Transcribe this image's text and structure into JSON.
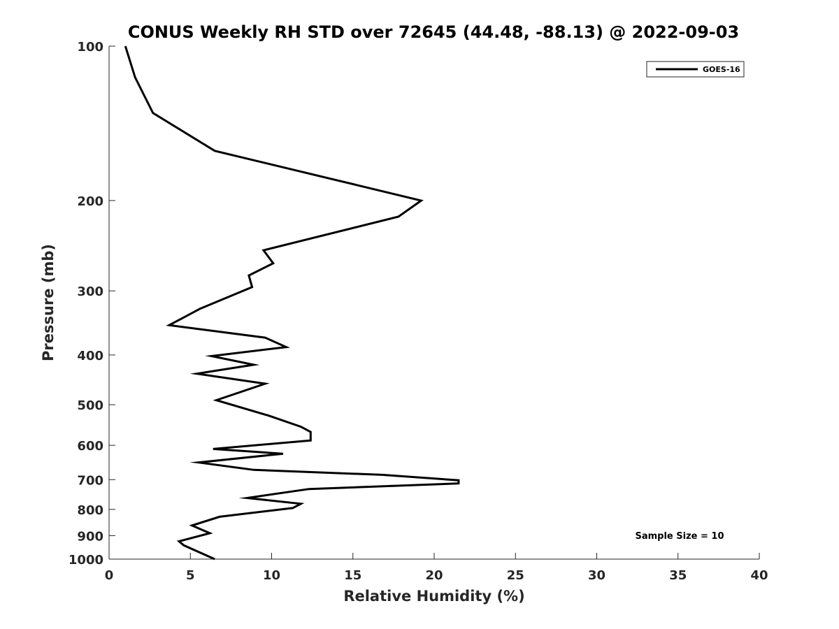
{
  "chart_data": {
    "type": "line",
    "title": "CONUS Weekly RH STD over 72645 (44.48, -88.13) @ 2022-09-03",
    "xlabel": "Relative Humidity (%)",
    "ylabel": "Pressure (mb)",
    "xlim": [
      0,
      40
    ],
    "ylim": [
      100,
      1000
    ],
    "y_scale": "log",
    "y_reversed": true,
    "x_ticks": [
      0,
      5,
      10,
      15,
      20,
      25,
      30,
      35,
      40
    ],
    "y_ticks": [
      100,
      200,
      300,
      400,
      500,
      600,
      700,
      800,
      900,
      1000
    ],
    "grid": false,
    "legend_position": "top-right",
    "series": [
      {
        "name": "GOES-16",
        "color": "#000000",
        "points": [
          [
            1.0,
            100
          ],
          [
            1.6,
            115
          ],
          [
            2.7,
            135
          ],
          [
            6.5,
            160
          ],
          [
            19.2,
            200
          ],
          [
            17.8,
            215
          ],
          [
            9.5,
            250
          ],
          [
            10.1,
            265
          ],
          [
            8.6,
            280
          ],
          [
            8.8,
            295
          ],
          [
            5.6,
            325
          ],
          [
            3.7,
            350
          ],
          [
            9.6,
            370
          ],
          [
            10.9,
            386
          ],
          [
            6.3,
            402
          ],
          [
            8.9,
            418
          ],
          [
            5.4,
            435
          ],
          [
            9.6,
            455
          ],
          [
            6.6,
            490
          ],
          [
            9.8,
            525
          ],
          [
            11.8,
            552
          ],
          [
            12.4,
            565
          ],
          [
            12.4,
            587
          ],
          [
            6.4,
            610
          ],
          [
            10.7,
            623
          ],
          [
            5.5,
            648
          ],
          [
            8.9,
            670
          ],
          [
            16.8,
            685
          ],
          [
            21.5,
            702
          ],
          [
            21.5,
            712
          ],
          [
            12.3,
            730
          ],
          [
            8.5,
            760
          ],
          [
            11.8,
            780
          ],
          [
            11.3,
            795
          ],
          [
            6.8,
            827
          ],
          [
            5.1,
            860
          ],
          [
            6.2,
            890
          ],
          [
            4.3,
            923
          ],
          [
            4.6,
            940
          ],
          [
            6.5,
            1000
          ]
        ]
      }
    ],
    "annotation": "Sample Size = 10"
  }
}
